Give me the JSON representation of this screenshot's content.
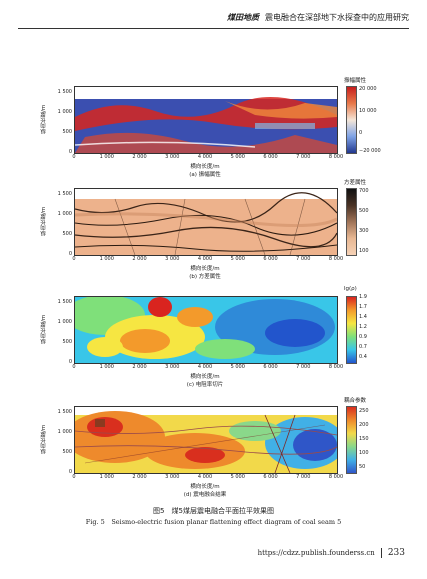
{
  "header": {
    "journal_logo": "煤田地质",
    "running_title": "震电融合在深部地下水探查中的应用研究"
  },
  "axes": {
    "ylabel": "纵向长度/m",
    "xlabel": "横向长度/m",
    "yticks": [
      "1 500",
      "1 000",
      "500",
      "0"
    ],
    "xticks": [
      "0",
      "1 000",
      "2 000",
      "3 000",
      "4 000",
      "5 000",
      "6 000",
      "7 000",
      "8 000"
    ]
  },
  "panels": [
    {
      "caption": "(a) 振幅属性",
      "cb_title": "振幅属性",
      "cb_ticks": [
        "20 000",
        "10 000",
        "0",
        "−20 000"
      ]
    },
    {
      "caption": "(b) 方差属性",
      "cb_title": "方差属性",
      "cb_ticks": [
        "700",
        "500",
        "300",
        "100"
      ]
    },
    {
      "caption": "(c) 电阻率切片",
      "cb_title": "lg(ρ)",
      "cb_ticks": [
        "1.9",
        "1.7",
        "1.4",
        "1.2",
        "0.9",
        "0.7",
        "0.4"
      ]
    },
    {
      "caption": "(d) 震电融合结果",
      "cb_title": "耦合参数",
      "cb_ticks": [
        "250",
        "200",
        "150",
        "100",
        "50"
      ]
    }
  ],
  "figure_caption_cn": "图5　煤5煤层震电融合平面拉平效果图",
  "figure_caption_en": "Fig. 5　Seismo-electric fusion planar flattening effect diagram of coal seam 5",
  "footer": {
    "url": "https://cdzz.publish.founderss.cn",
    "page": "233"
  },
  "colors": {
    "amp": [
      "#2a3d9e",
      "#d7261e",
      "#f08a3c",
      "#4a6ad0"
    ],
    "var": [
      "#f0b790",
      "#c9875f",
      "#5a3a2a",
      "#111111"
    ],
    "res": [
      "#2255cc",
      "#39c6e8",
      "#7fe07a",
      "#f6e642",
      "#f39a2b",
      "#d9241f"
    ],
    "fus": [
      "#2f56c8",
      "#41b0e6",
      "#8ad88a",
      "#f2d94a",
      "#ee8a2c",
      "#d92f1e"
    ]
  }
}
